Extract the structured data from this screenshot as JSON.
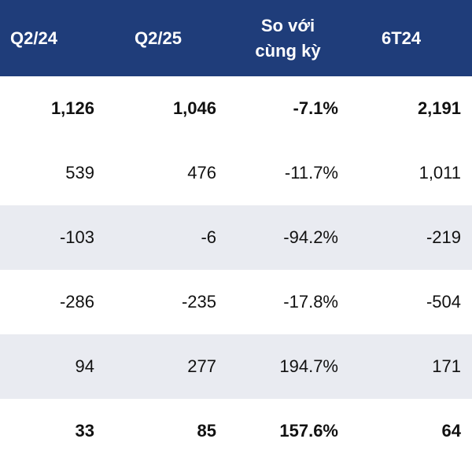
{
  "header": {
    "col1": "Q2/24",
    "col2": "Q2/25",
    "col3_line1": "So với",
    "col3_line2": "cùng kỳ",
    "col4": "6T24"
  },
  "rows": [
    {
      "bold": true,
      "shaded": false,
      "c1": "1,126",
      "c2": "1,046",
      "c3": "-7.1%",
      "c4": "2,191"
    },
    {
      "bold": false,
      "shaded": false,
      "c1": "539",
      "c2": "476",
      "c3": "-11.7%",
      "c4": "1,011"
    },
    {
      "bold": false,
      "shaded": true,
      "c1": "-103",
      "c2": "-6",
      "c3": "-94.2%",
      "c4": "-219"
    },
    {
      "bold": false,
      "shaded": false,
      "c1": "-286",
      "c2": "-235",
      "c3": "-17.8%",
      "c4": "-504"
    },
    {
      "bold": false,
      "shaded": true,
      "c1": "94",
      "c2": "277",
      "c3": "194.7%",
      "c4": "171"
    },
    {
      "bold": true,
      "shaded": false,
      "c1": "33",
      "c2": "85",
      "c3": "157.6%",
      "c4": "64"
    }
  ]
}
